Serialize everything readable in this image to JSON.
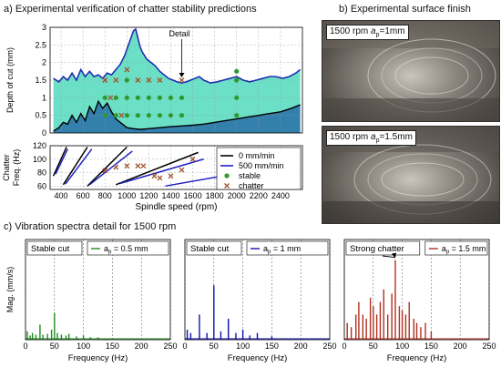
{
  "panels": {
    "a_title": "a) Experimental verification of chatter stability predictions",
    "b_title": "b) Experimental surface finish",
    "c_title": "c) Vibration spectra detail for 1500 rpm"
  },
  "photos": [
    {
      "label_prefix": "1500 rpm ",
      "label_sym": "a",
      "label_sub": "p",
      "label_suffix": "=1mm"
    },
    {
      "label_prefix": "1500 rpm ",
      "label_sym": "a",
      "label_sub": "p",
      "label_suffix": "=1.5mm"
    }
  ],
  "colors": {
    "stability_line": "#1f2fb0",
    "stable_region_fill": "#46d8b8",
    "lower_region_fill": "#2a6fa8",
    "stable_marker": "#2e9a2e",
    "chatter_marker": "#a0522d",
    "line_0": "#000000",
    "line_500": "#2020c0",
    "spectrum_green": "#1f8a1f",
    "spectrum_blue": "#1010b0",
    "spectrum_red": "#b03020"
  },
  "chart_data": [
    {
      "type": "line",
      "id": "stability_lobes",
      "xlabel": "",
      "ylabel": "Depth of cut (mm)",
      "xlim": [
        300,
        2600
      ],
      "ylim": [
        0,
        3
      ],
      "yticks": [
        0,
        0.5,
        1,
        1.5,
        2,
        2.5,
        3
      ],
      "annotation": "Detail",
      "series": [
        {
          "role": "upper_limit",
          "x": [
            330,
            380,
            420,
            460,
            500,
            540,
            580,
            620,
            660,
            700,
            740,
            780,
            820,
            860,
            900,
            940,
            980,
            1020,
            1060,
            1080,
            1100,
            1120,
            1140,
            1180,
            1220,
            1260,
            1300,
            1340,
            1380,
            1420,
            1460,
            1500,
            1540,
            1580,
            1620,
            1660,
            1700,
            1760,
            1820,
            1880,
            1940,
            2000,
            2060,
            2120,
            2180,
            2240,
            2300,
            2360,
            2420,
            2480,
            2540,
            2580
          ],
          "y": [
            1.55,
            1.45,
            1.6,
            1.5,
            1.7,
            1.5,
            1.8,
            1.6,
            1.75,
            1.6,
            1.65,
            1.55,
            1.7,
            1.65,
            1.8,
            1.95,
            2.2,
            2.55,
            2.9,
            2.95,
            2.7,
            2.45,
            2.3,
            2.1,
            2.0,
            1.9,
            1.75,
            1.65,
            1.55,
            1.5,
            1.45,
            1.42,
            1.45,
            1.5,
            1.55,
            1.6,
            1.5,
            1.42,
            1.45,
            1.5,
            1.55,
            1.6,
            1.5,
            1.45,
            1.5,
            1.55,
            1.6,
            1.6,
            1.55,
            1.6,
            1.7,
            1.8
          ]
        },
        {
          "role": "lower_limit",
          "x": [
            330,
            380,
            420,
            460,
            500,
            540,
            580,
            620,
            660,
            700,
            740,
            780,
            820,
            860,
            900,
            960,
            1000,
            1060,
            1120,
            1200,
            1300,
            1400,
            1500,
            1600,
            1700,
            1800,
            1900,
            2000,
            2100,
            2200,
            2300,
            2400,
            2500,
            2580
          ],
          "y": [
            0.05,
            0.15,
            0.3,
            0.25,
            0.5,
            0.3,
            0.55,
            0.35,
            0.75,
            0.55,
            0.9,
            0.7,
            0.85,
            0.6,
            0.4,
            0.25,
            0.15,
            0.12,
            0.1,
            0.12,
            0.15,
            0.18,
            0.2,
            0.22,
            0.25,
            0.3,
            0.35,
            0.4,
            0.45,
            0.5,
            0.55,
            0.6,
            0.7,
            0.8
          ]
        }
      ],
      "stable_points": [
        [
          800,
          1.0
        ],
        [
          800,
          0.5
        ],
        [
          900,
          1.0
        ],
        [
          900,
          0.5
        ],
        [
          1000,
          1.5
        ],
        [
          1000,
          1.0
        ],
        [
          1000,
          0.5
        ],
        [
          1100,
          1.0
        ],
        [
          1100,
          0.5
        ],
        [
          1200,
          1.0
        ],
        [
          1200,
          0.5
        ],
        [
          1300,
          1.0
        ],
        [
          1300,
          0.5
        ],
        [
          1400,
          1.0
        ],
        [
          1400,
          0.5
        ],
        [
          1500,
          1.0
        ],
        [
          1500,
          0.5
        ],
        [
          2000,
          1.75
        ],
        [
          2000,
          1.5
        ],
        [
          2000,
          1.0
        ],
        [
          2000,
          0.5
        ]
      ],
      "chatter_points": [
        [
          800,
          1.5
        ],
        [
          900,
          1.5
        ],
        [
          950,
          0.5
        ],
        [
          1000,
          1.8
        ],
        [
          1100,
          1.5
        ],
        [
          1200,
          1.5
        ],
        [
          1300,
          1.5
        ],
        [
          1500,
          1.5
        ],
        [
          850,
          1.0
        ]
      ]
    },
    {
      "type": "line",
      "id": "chatter_frequency",
      "xlabel": "Spindle speed (rpm)",
      "ylabel": "Chatter\nFreq. (Hz)",
      "xlim": [
        300,
        2600
      ],
      "ylim": [
        55,
        120
      ],
      "xticks": [
        400,
        600,
        800,
        1000,
        1200,
        1400,
        1600,
        1800,
        2000,
        2200,
        2400
      ],
      "yticks": [
        60,
        80,
        100,
        120
      ],
      "legend": [
        "0 mm/min",
        "500 mm/min",
        "stable",
        "chatter"
      ],
      "legend_position": "right",
      "series": [
        {
          "name": "0 mm/min",
          "segments": [
            {
              "x": [
                330,
                450
              ],
              "y": [
                75,
                118
              ]
            },
            {
              "x": [
                420,
                640
              ],
              "y": [
                62,
                118
              ]
            },
            {
              "x": [
                640,
                1000
              ],
              "y": [
                60,
                118
              ]
            },
            {
              "x": [
                900,
                1650
              ],
              "y": [
                62,
                110
              ]
            }
          ]
        },
        {
          "name": "500 mm/min",
          "segments": [
            {
              "x": [
                350,
                460
              ],
              "y": [
                78,
                115
              ]
            },
            {
              "x": [
                440,
                680
              ],
              "y": [
                63,
                115
              ]
            },
            {
              "x": [
                660,
                1050
              ],
              "y": [
                62,
                112
              ]
            },
            {
              "x": [
                940,
                1700
              ],
              "y": [
                64,
                100
              ]
            },
            {
              "x": [
                1350,
                2050
              ],
              "y": [
                60,
                80
              ]
            }
          ]
        }
      ],
      "chatter_points": [
        [
          800,
          83
        ],
        [
          900,
          88
        ],
        [
          1000,
          90
        ],
        [
          1100,
          90
        ],
        [
          1150,
          90
        ],
        [
          1250,
          75
        ],
        [
          1300,
          72
        ],
        [
          1400,
          75
        ],
        [
          1500,
          84
        ],
        [
          1600,
          100
        ]
      ]
    },
    {
      "type": "bar",
      "id": "spectrum_05",
      "box_label": "Stable cut",
      "legend_prefix": "a",
      "legend_sub": "p",
      "legend_suffix": " = 0.5 mm",
      "xlabel": "Frequency (Hz)",
      "ylabel": "Mag. (mm/s)",
      "xlim": [
        0,
        250
      ],
      "xticks": [
        0,
        50,
        100,
        150,
        200,
        250
      ],
      "ylim": [
        0,
        1
      ],
      "x": [
        3,
        8,
        12,
        18,
        25,
        30,
        38,
        45,
        50,
        55,
        62,
        70,
        75,
        88,
        100,
        112,
        125
      ],
      "values": [
        0.1,
        0.05,
        0.08,
        0.06,
        0.18,
        0.06,
        0.07,
        0.12,
        0.32,
        0.08,
        0.06,
        0.05,
        0.07,
        0.04,
        0.05,
        0.03,
        0.03
      ]
    },
    {
      "type": "bar",
      "id": "spectrum_1",
      "box_label": "Stable cut",
      "legend_prefix": "a",
      "legend_sub": "p",
      "legend_suffix": " = 1 mm",
      "xlabel": "Frequency (Hz)",
      "xlim": [
        0,
        250
      ],
      "xticks": [
        0,
        50,
        100,
        150,
        200,
        250
      ],
      "ylim": [
        0,
        1
      ],
      "x": [
        4,
        10,
        25,
        38,
        50,
        62,
        75,
        88,
        100,
        112,
        125,
        150
      ],
      "values": [
        0.12,
        0.08,
        0.3,
        0.08,
        0.65,
        0.1,
        0.25,
        0.08,
        0.12,
        0.05,
        0.08,
        0.04
      ]
    },
    {
      "type": "bar",
      "id": "spectrum_15",
      "box_label": "Strong chatter",
      "legend_prefix": "a",
      "legend_sub": "p",
      "legend_suffix": " = 1.5 mm",
      "xlabel": "Frequency (Hz)",
      "xlim": [
        0,
        250
      ],
      "xticks": [
        0,
        50,
        100,
        150,
        200,
        250
      ],
      "ylim": [
        0,
        1
      ],
      "x": [
        5,
        12,
        20,
        25,
        32,
        38,
        45,
        50,
        56,
        62,
        68,
        75,
        82,
        88,
        95,
        100,
        106,
        112,
        120,
        125,
        132,
        140,
        150
      ],
      "values": [
        0.2,
        0.15,
        0.3,
        0.45,
        0.3,
        0.25,
        0.5,
        0.4,
        0.3,
        0.45,
        0.6,
        0.3,
        0.55,
        0.95,
        0.4,
        0.35,
        0.3,
        0.45,
        0.25,
        0.2,
        0.15,
        0.2,
        0.1
      ]
    }
  ]
}
